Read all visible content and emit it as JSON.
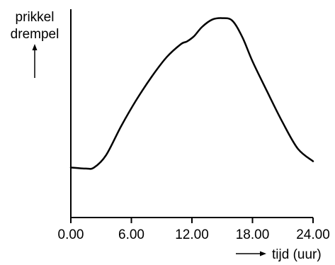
{
  "chart_data": {
    "type": "line",
    "ylabel_lines": [
      "prikkel",
      "drempel"
    ],
    "xlabel": "tijd (uur)",
    "x_ticks": [
      0,
      6,
      12,
      18,
      24
    ],
    "x_tick_labels": [
      "0.00",
      "6.00",
      "12.00",
      "18.00",
      "24.00"
    ],
    "xlim": [
      0,
      24
    ],
    "ylim": [
      0,
      100
    ],
    "grid": false,
    "y_ticks_shown": false,
    "series": [
      {
        "x": [
          0,
          1.5,
          2.3,
          3.5,
          5,
          6.5,
          8,
          9.5,
          10.9,
          11.5,
          12.2,
          13,
          14,
          15,
          16,
          17,
          18,
          19.5,
          21,
          22.5,
          24
        ],
        "y": [
          24,
          23.5,
          24,
          30,
          44,
          56.5,
          67.5,
          77,
          83.2,
          84.5,
          87,
          91.5,
          95,
          95.7,
          94.5,
          86.5,
          75,
          60,
          45.5,
          33,
          27
        ]
      }
    ]
  }
}
